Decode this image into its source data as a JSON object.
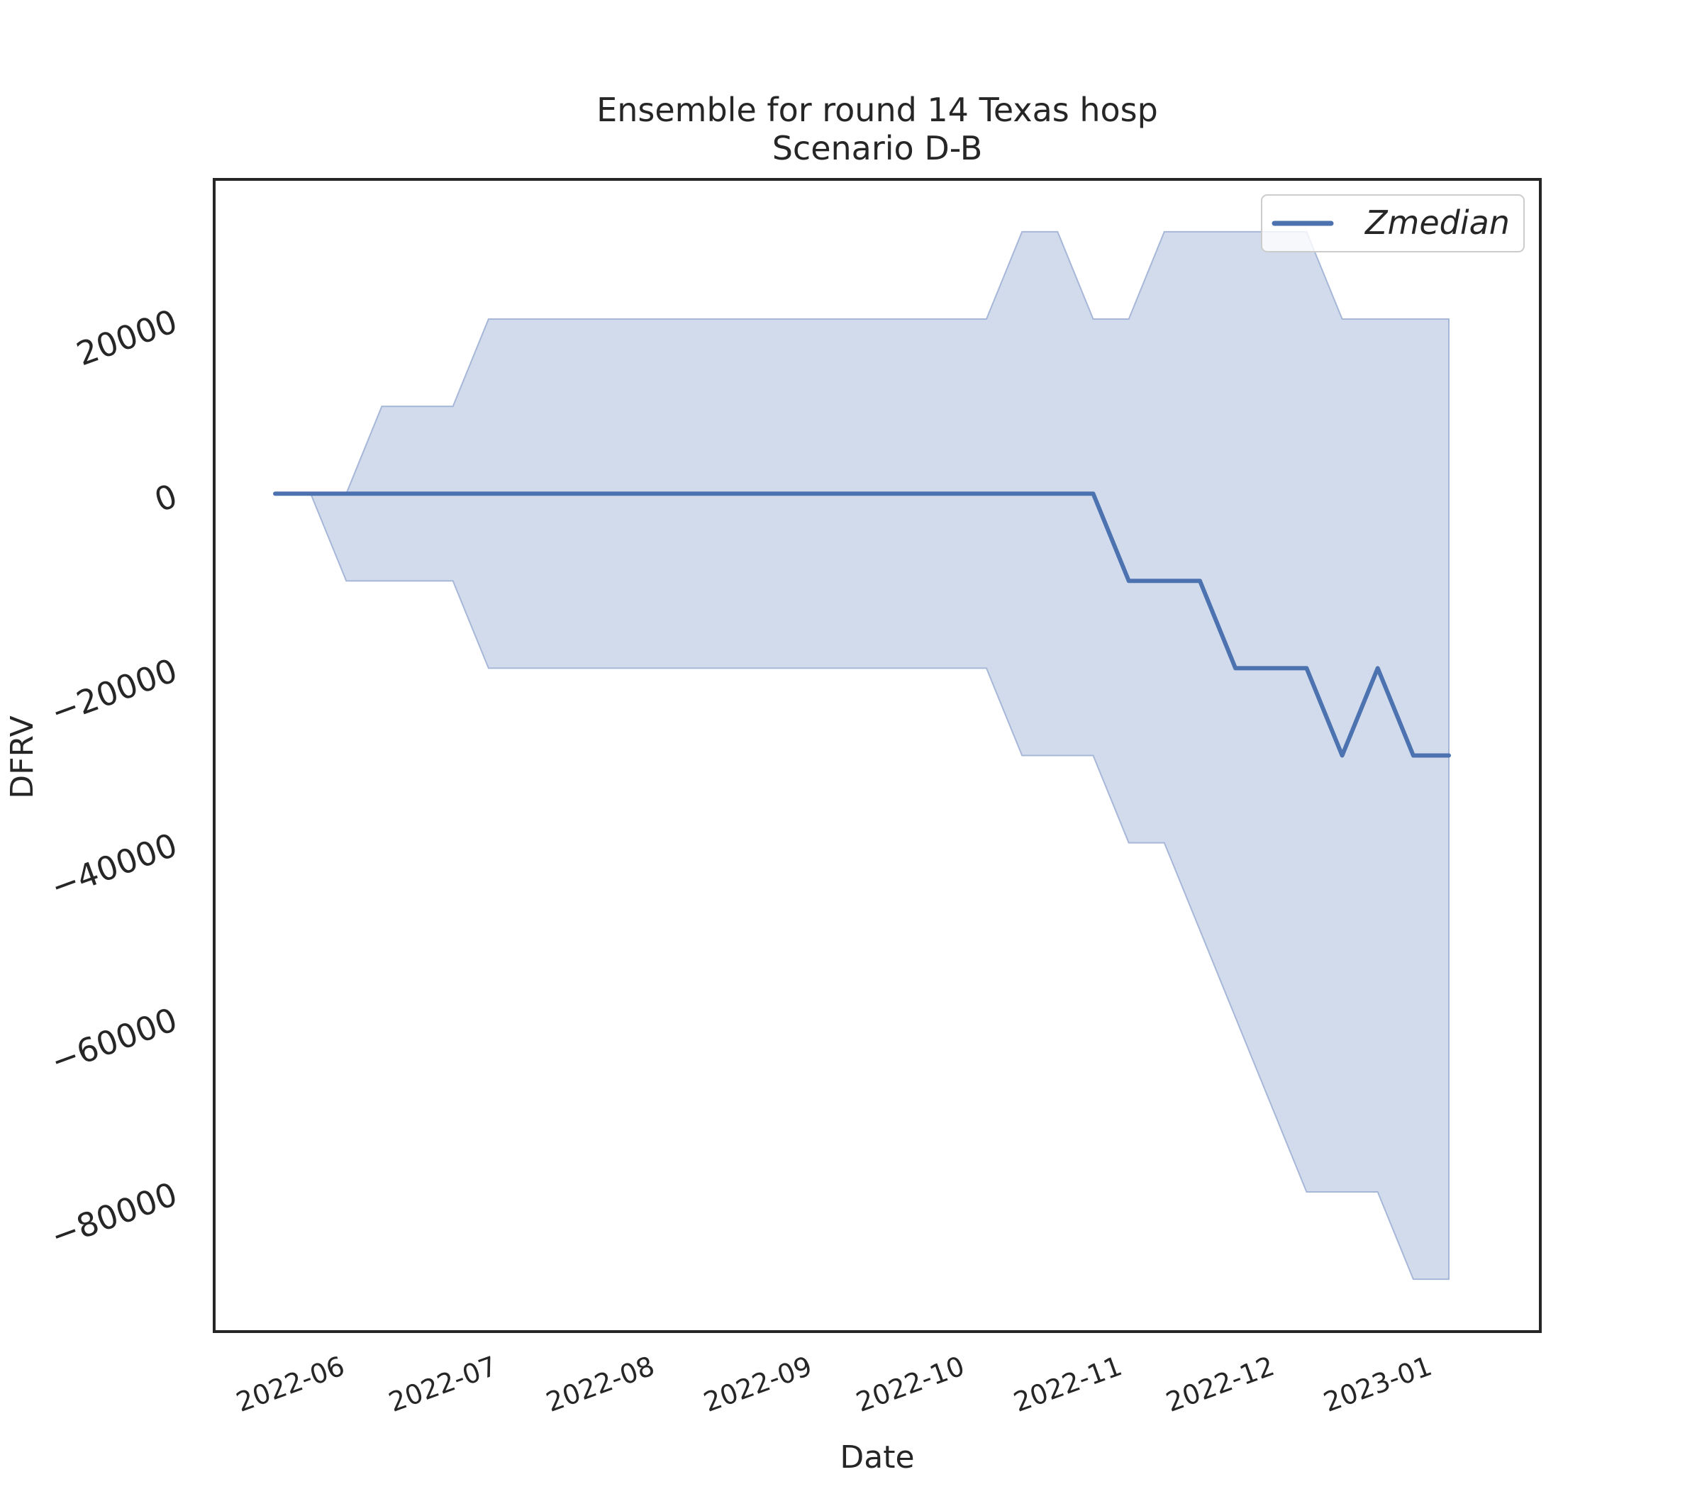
{
  "chart_data": {
    "type": "line",
    "title": "Ensemble for round 14 Texas hosp",
    "subtitle": "Scenario D-B",
    "xlabel": "Date",
    "ylabel": "DFRV",
    "x_ticks": [
      "2022-06",
      "2022-07",
      "2022-08",
      "2022-09",
      "2022-10",
      "2022-11",
      "2022-12",
      "2023-01"
    ],
    "y_ticks": [
      20000,
      0,
      -20000,
      -40000,
      -60000,
      -80000
    ],
    "y_tick_labels": [
      "20000",
      "0",
      "−20000",
      "−40000",
      "−60000",
      "−80000"
    ],
    "xlim": [
      "2022-05-09",
      "2023-01-25"
    ],
    "ylim": [
      -96000,
      36000
    ],
    "grid": false,
    "legend_position": "upper-right",
    "colors": {
      "line": "#4c72b0",
      "band": "#c3cfe6",
      "band_edge": "#a6b7d8",
      "frame": "#262626"
    },
    "series": [
      {
        "name": "Zmedian",
        "x": [
          "2022-05-21",
          "2022-05-28",
          "2022-06-04",
          "2022-06-11",
          "2022-06-18",
          "2022-06-25",
          "2022-07-02",
          "2022-07-09",
          "2022-07-16",
          "2022-07-23",
          "2022-07-30",
          "2022-08-06",
          "2022-08-13",
          "2022-08-20",
          "2022-08-27",
          "2022-09-03",
          "2022-09-10",
          "2022-09-17",
          "2022-09-24",
          "2022-10-01",
          "2022-10-08",
          "2022-10-15",
          "2022-10-22",
          "2022-10-29",
          "2022-11-05",
          "2022-11-12",
          "2022-11-19",
          "2022-11-26",
          "2022-12-03",
          "2022-12-10",
          "2022-12-17",
          "2022-12-24",
          "2022-12-31",
          "2023-01-07"
        ],
        "y": [
          0,
          0,
          0,
          0,
          0,
          0,
          0,
          0,
          0,
          0,
          0,
          0,
          0,
          0,
          0,
          0,
          0,
          0,
          0,
          0,
          0,
          0,
          0,
          0,
          -10000,
          -10000,
          -10000,
          -20000,
          -20000,
          -20000,
          -30000,
          -20000,
          -30000,
          -30000
        ],
        "band_lower": [
          0,
          0,
          -10000,
          -10000,
          -10000,
          -10000,
          -20000,
          -20000,
          -20000,
          -20000,
          -20000,
          -20000,
          -20000,
          -20000,
          -20000,
          -20000,
          -20000,
          -20000,
          -20000,
          -20000,
          -20000,
          -30000,
          -30000,
          -30000,
          -40000,
          -40000,
          -50000,
          -60000,
          -70000,
          -80000,
          -80000,
          -80000,
          -90000,
          -90000
        ],
        "band_upper": [
          0,
          0,
          0,
          10000,
          10000,
          10000,
          20000,
          20000,
          20000,
          20000,
          20000,
          20000,
          20000,
          20000,
          20000,
          20000,
          20000,
          20000,
          20000,
          20000,
          20000,
          30000,
          30000,
          20000,
          20000,
          30000,
          30000,
          30000,
          30000,
          30000,
          20000,
          20000,
          20000,
          20000
        ]
      }
    ]
  }
}
